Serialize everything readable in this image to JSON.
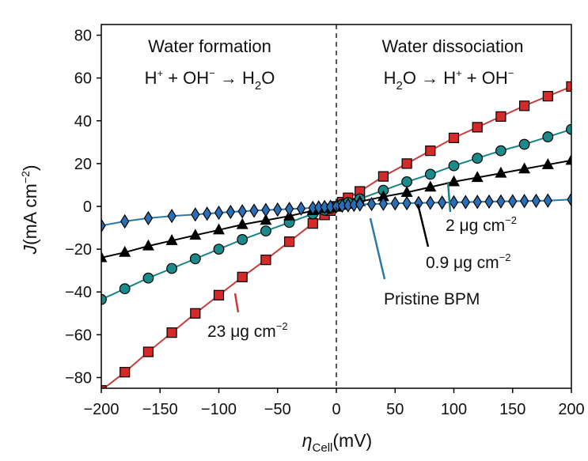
{
  "chart_data": {
    "type": "scatter",
    "xlabel": "η",
    "xlabel_sub": "Cell",
    "xlabel_unit": "(mV)",
    "ylabel_var": "J",
    "ylabel_unit_pre": "(mA cm",
    "ylabel_unit_sup": "−2",
    "ylabel_unit_post": ")",
    "xlim": [
      -200,
      200
    ],
    "ylim": [
      -85,
      85
    ],
    "xticks": [
      -200,
      -150,
      -100,
      -50,
      0,
      50,
      100,
      150,
      200
    ],
    "xtick_labels": [
      "−200",
      "−150",
      "−100",
      "−50",
      "0",
      "50",
      "100",
      "150",
      "200"
    ],
    "yticks": [
      -80,
      -60,
      -40,
      -20,
      0,
      20,
      40,
      60,
      80
    ],
    "ytick_labels": [
      "−80",
      "−60",
      "−40",
      "−20",
      "0",
      "20",
      "40",
      "60",
      "80"
    ],
    "grid": false,
    "regions": {
      "left_title": "Water formation",
      "left_eq": {
        "a": "H",
        "a_sup": "+",
        "b": " + OH",
        "b_sup": "−",
        "arrow": " → H",
        "c_sub": "2",
        "c": "O"
      },
      "right_title": "Water dissociation",
      "right_eq": {
        "a": "H",
        "a_sub": "2",
        "b": "O → H",
        "b_sup": "+",
        "c": " + OH",
        "c_sup": "−"
      }
    },
    "series": [
      {
        "label": "23 μg cm",
        "label_sup": "−2",
        "color": "#d42a2a",
        "line_color": "#c83c3c",
        "marker": "square",
        "x": [
          -200,
          -180,
          -160,
          -140,
          -120,
          -100,
          -80,
          -60,
          -40,
          -20,
          -10,
          -5,
          0,
          5,
          10,
          20,
          40,
          60,
          80,
          100,
          120,
          140,
          160,
          180,
          200
        ],
        "y": [
          -86,
          -77.5,
          -68,
          -59,
          -50,
          -41.5,
          -33,
          -25,
          -16.5,
          -8,
          -4,
          -2,
          0,
          2,
          4,
          7,
          14,
          20,
          26,
          32,
          37,
          42,
          47,
          51.5,
          56
        ]
      },
      {
        "label": "2 μg cm",
        "label_sup": "−2",
        "color": "#1a8a8a",
        "line_color": "#178585",
        "marker": "circle",
        "x": [
          -200,
          -180,
          -160,
          -140,
          -120,
          -100,
          -80,
          -60,
          -40,
          -20,
          -10,
          -5,
          0,
          5,
          10,
          20,
          40,
          60,
          80,
          100,
          120,
          140,
          160,
          180,
          200
        ],
        "y": [
          -43.5,
          -38.5,
          -33.5,
          -29,
          -24.5,
          -20,
          -15.5,
          -11.5,
          -7.5,
          -3.5,
          -1.8,
          -0.9,
          0,
          0.9,
          1.8,
          3.5,
          7.5,
          11.5,
          15,
          19,
          22.5,
          26,
          29,
          32.5,
          36
        ]
      },
      {
        "label": "0.9 μg cm",
        "label_sup": "−2",
        "color": "#000000",
        "line_color": "#000000",
        "marker": "triangle",
        "x": [
          -200,
          -180,
          -160,
          -140,
          -120,
          -100,
          -80,
          -60,
          -40,
          -20,
          -10,
          -5,
          0,
          5,
          10,
          20,
          40,
          60,
          80,
          100,
          120,
          140,
          160,
          180,
          200
        ],
        "y": [
          -24,
          -21.5,
          -18.5,
          -16,
          -13.5,
          -11,
          -8.5,
          -6.5,
          -4.5,
          -2,
          -1,
          -0.5,
          0,
          0.5,
          1,
          2.2,
          4.5,
          6.5,
          9,
          11.5,
          13.5,
          15.5,
          17.5,
          19.5,
          21.5
        ]
      },
      {
        "label": "Pristine BPM",
        "color": "#2a6fb5",
        "line_color": "#2a7aa8",
        "marker": "diamond",
        "x": [
          -200,
          -180,
          -160,
          -140,
          -120,
          -110,
          -100,
          -90,
          -80,
          -70,
          -60,
          -50,
          -40,
          -30,
          -20,
          -15,
          -10,
          -5,
          0,
          5,
          10,
          15,
          20,
          30,
          40,
          50,
          60,
          70,
          80,
          90,
          100,
          110,
          120,
          130,
          140,
          150,
          160,
          170,
          180,
          200
        ],
        "y": [
          -9,
          -7,
          -5.5,
          -4.5,
          -3.8,
          -3.4,
          -3,
          -2.6,
          -2.3,
          -2,
          -1.7,
          -1.5,
          -1.2,
          -1,
          -0.7,
          -0.5,
          -0.3,
          -0.2,
          0,
          0.3,
          0.5,
          0.7,
          0.9,
          1.1,
          1.2,
          1.4,
          1.5,
          1.6,
          1.7,
          1.8,
          1.9,
          2,
          2.1,
          2.2,
          2.3,
          2.4,
          2.5,
          2.6,
          2.7,
          3.2
        ]
      }
    ]
  }
}
